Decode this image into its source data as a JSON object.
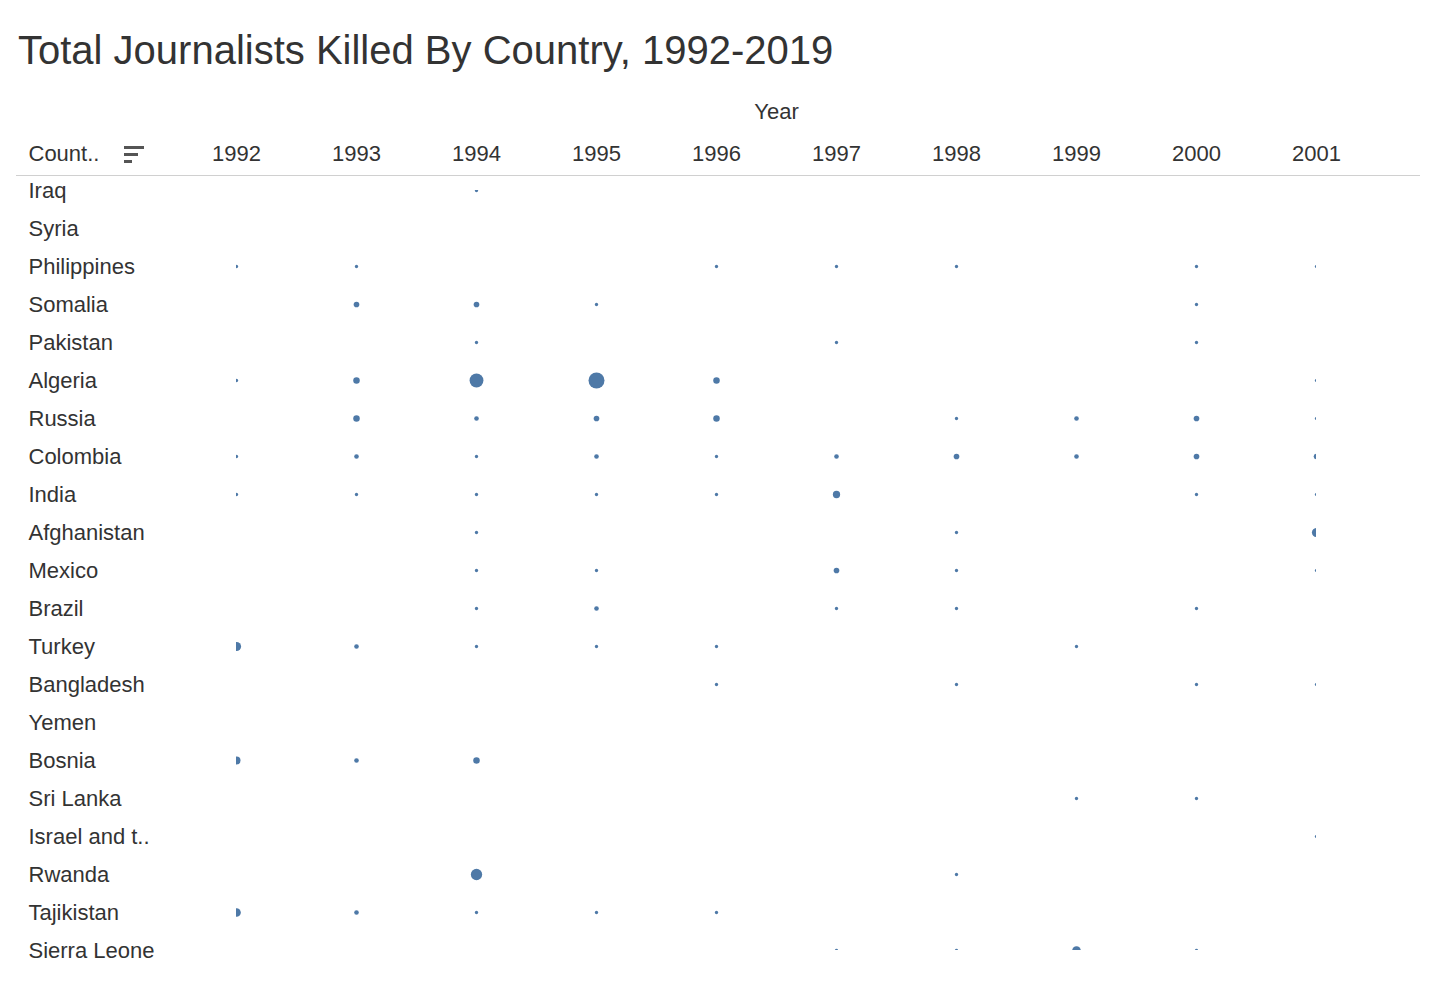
{
  "chart_data": {
    "type": "dot_matrix",
    "title": "Total Journalists Killed By Country, 1992-2019",
    "x_label": "Year",
    "y_label": "Count..",
    "x": [
      1992,
      1993,
      1994,
      1995,
      1996,
      1997,
      1998,
      1999,
      2000,
      2001
    ],
    "categories": [
      "Iraq",
      "Syria",
      "Philippines",
      "Somalia",
      "Pakistan",
      "Algeria",
      "Russia",
      "Colombia",
      "India",
      "Afghanistan",
      "Mexico",
      "Brazil",
      "Turkey",
      "Bangladesh",
      "Yemen",
      "Bosnia",
      "Sri Lanka",
      "Israel and t..",
      "Rwanda",
      "Tajikistan",
      "Sierra Leone"
    ],
    "values": [
      [
        null,
        null,
        1,
        null,
        null,
        null,
        null,
        null,
        null,
        null
      ],
      [
        null,
        null,
        null,
        null,
        null,
        null,
        null,
        null,
        null,
        null
      ],
      [
        1,
        1,
        null,
        null,
        1,
        1,
        1,
        null,
        1,
        1
      ],
      [
        null,
        3,
        3,
        1,
        null,
        null,
        null,
        null,
        1,
        null
      ],
      [
        null,
        null,
        1,
        null,
        null,
        1,
        null,
        null,
        1,
        null
      ],
      [
        1,
        4,
        18,
        24,
        4,
        null,
        null,
        null,
        null,
        1
      ],
      [
        null,
        4,
        2,
        3,
        4,
        null,
        1,
        2,
        3,
        1
      ],
      [
        1,
        2,
        1,
        2,
        1,
        2,
        3,
        2,
        3,
        3
      ],
      [
        1,
        1,
        1,
        1,
        1,
        5,
        null,
        null,
        1,
        1
      ],
      [
        null,
        null,
        1,
        null,
        null,
        null,
        1,
        null,
        null,
        8
      ],
      [
        null,
        null,
        1,
        1,
        null,
        3,
        1,
        null,
        null,
        1
      ],
      [
        null,
        null,
        1,
        2,
        null,
        1,
        1,
        null,
        1,
        null
      ],
      [
        8,
        2,
        1,
        1,
        1,
        null,
        null,
        1,
        null,
        null
      ],
      [
        null,
        null,
        null,
        null,
        1,
        null,
        1,
        null,
        1,
        1
      ],
      [
        null,
        null,
        null,
        null,
        null,
        null,
        null,
        null,
        null,
        null
      ],
      [
        6,
        2,
        4,
        null,
        null,
        null,
        null,
        null,
        null,
        null
      ],
      [
        null,
        null,
        null,
        null,
        null,
        null,
        null,
        1,
        1,
        null
      ],
      [
        null,
        null,
        null,
        null,
        null,
        null,
        null,
        null,
        null,
        1
      ],
      [
        null,
        null,
        12,
        null,
        null,
        null,
        1,
        null,
        null,
        null
      ],
      [
        7,
        2,
        1,
        1,
        1,
        null,
        null,
        null,
        null,
        null
      ],
      [
        null,
        null,
        null,
        null,
        null,
        1,
        1,
        7,
        1,
        null
      ]
    ],
    "color": "#4e79a7"
  }
}
